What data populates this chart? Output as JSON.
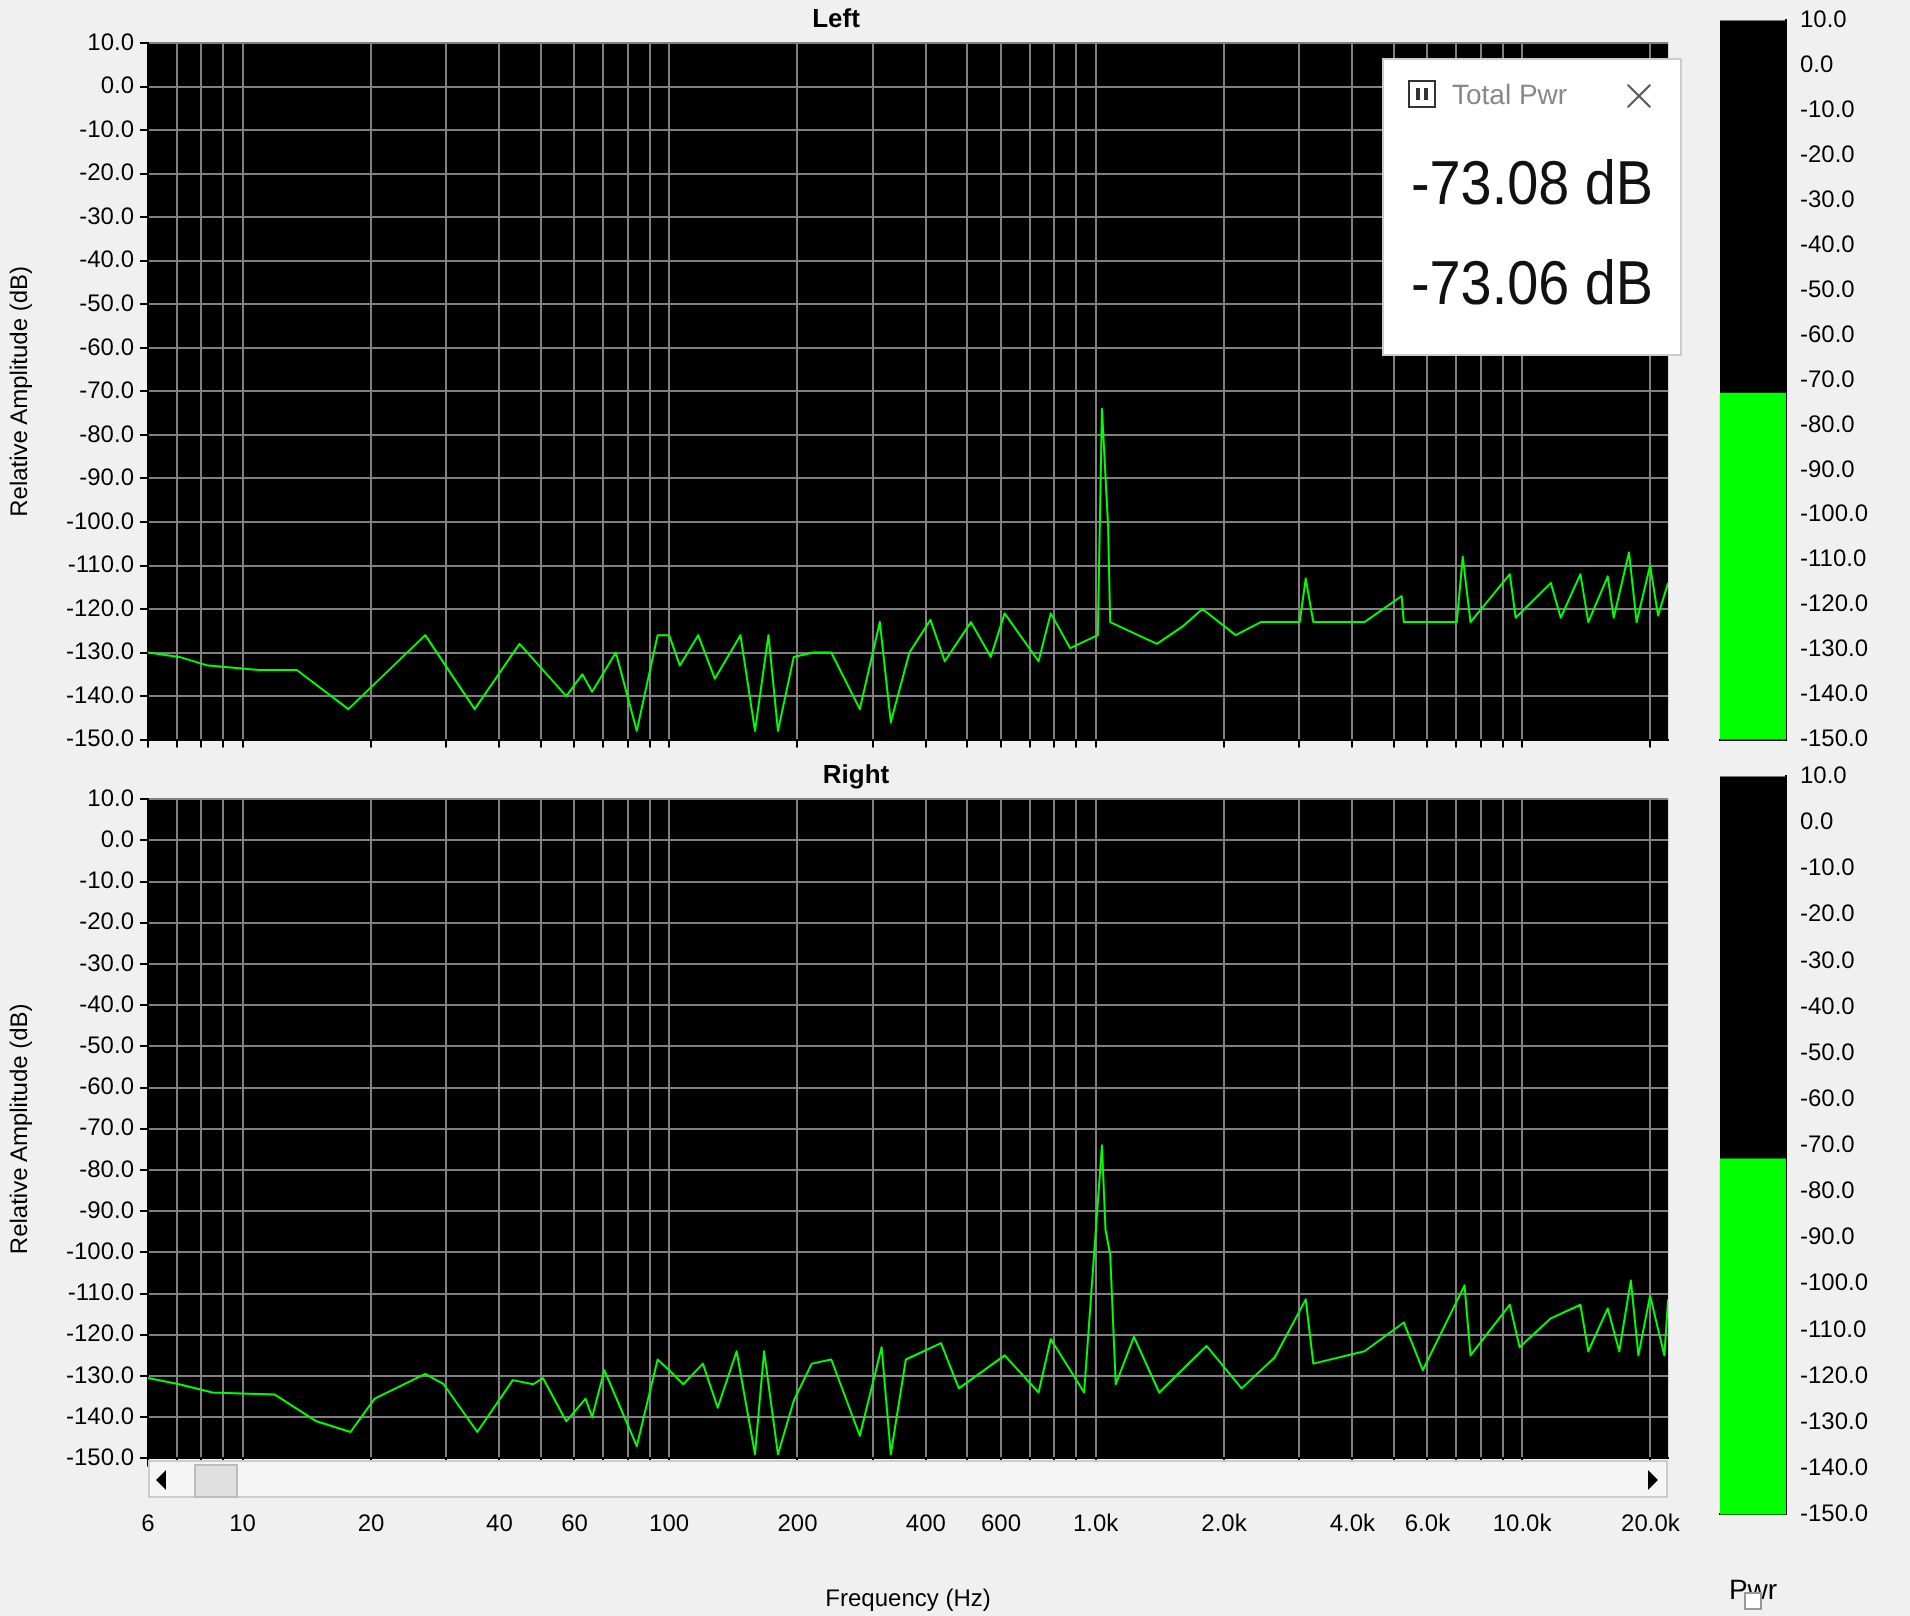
{
  "chart_data": [
    {
      "type": "line",
      "title": "Left",
      "ylabel": "Relative Amplitude (dB)",
      "log": "x",
      "grid": true,
      "tick_labels": "y",
      "xlim": [
        6,
        22000
      ],
      "xticks": [
        {
          "value": 6,
          "label": null
        },
        {
          "value": 7,
          "label": null
        },
        {
          "value": 8,
          "label": null
        },
        {
          "value": 9,
          "label": null
        },
        {
          "value": 10,
          "label": null
        },
        {
          "value": 20,
          "label": null
        },
        {
          "value": 30,
          "label": null
        },
        {
          "value": 40,
          "label": null
        },
        {
          "value": 50,
          "label": null
        },
        {
          "value": 60,
          "label": null
        },
        {
          "value": 70,
          "label": null
        },
        {
          "value": 80,
          "label": null
        },
        {
          "value": 90,
          "label": null
        },
        {
          "value": 100,
          "label": null
        },
        {
          "value": 200,
          "label": null
        },
        {
          "value": 300,
          "label": null
        },
        {
          "value": 400,
          "label": null
        },
        {
          "value": 500,
          "label": null
        },
        {
          "value": 600,
          "label": null
        },
        {
          "value": 700,
          "label": null
        },
        {
          "value": 800,
          "label": null
        },
        {
          "value": 900,
          "label": null
        },
        {
          "value": 1000,
          "label": null
        },
        {
          "value": 2000,
          "label": null
        },
        {
          "value": 3000,
          "label": null
        },
        {
          "value": 4000,
          "label": null
        },
        {
          "value": 5000,
          "label": null
        },
        {
          "value": 6000,
          "label": null
        },
        {
          "value": 7000,
          "label": null
        },
        {
          "value": 8000,
          "label": null
        },
        {
          "value": 9000,
          "label": null
        },
        {
          "value": 10000,
          "label": null
        },
        {
          "value": 20000,
          "label": null
        }
      ],
      "ylim": [
        -150,
        10
      ],
      "yticks": [
        {
          "value": 10,
          "label": "10.0"
        },
        {
          "value": 0,
          "label": "0.0"
        },
        {
          "value": -10,
          "label": "-10.0"
        },
        {
          "value": -20,
          "label": "-20.0"
        },
        {
          "value": -30,
          "label": "-30.0"
        },
        {
          "value": -40,
          "label": "-40.0"
        },
        {
          "value": -50,
          "label": "-50.0"
        },
        {
          "value": -60,
          "label": "-60.0"
        },
        {
          "value": -70,
          "label": "-70.0"
        },
        {
          "value": -80,
          "label": "-80.0"
        },
        {
          "value": -90,
          "label": "-90.0"
        },
        {
          "value": -100,
          "label": "-100.0"
        },
        {
          "value": -110,
          "label": "-110.0"
        },
        {
          "value": -120,
          "label": "-120.0"
        },
        {
          "value": -130,
          "label": "-130.0"
        },
        {
          "value": -140,
          "label": "-140.0"
        },
        {
          "value": -150,
          "label": "-150.0"
        }
      ],
      "series": [
        {
          "color": "#00ff00",
          "x": [
            6,
            7.1,
            8.3,
            10.9,
            13.4,
            17.7,
            26.8,
            35,
            44.6,
            57.4,
            62.6,
            66,
            75,
            84,
            94,
            100,
            106,
            117,
            128,
            147,
            159,
            171,
            180,
            196,
            218,
            240,
            280,
            312,
            331,
            366,
            410,
            443,
            510,
            568,
            612,
            735,
            785,
            872,
            1012,
            1035,
            1070,
            1082,
            1393,
            1600,
            1780,
            2130,
            2440,
            3010,
            3110,
            3240,
            4270,
            5220,
            5280,
            7030,
            7260,
            7570,
            9360,
            9660,
            11680,
            12320,
            13700,
            14300,
            15880,
            16400,
            17810,
            18560,
            19960,
            20840,
            22000
          ],
          "values": [
            -130,
            -131,
            -133,
            -134,
            -134,
            -143,
            -126,
            -143,
            -128,
            -140,
            -135,
            -139,
            -130,
            -148,
            -126,
            -126,
            -133,
            -126,
            -136,
            -126,
            -148,
            -126,
            -148,
            -131,
            -130,
            -130,
            -143,
            -123,
            -146,
            -130,
            -122.5,
            -132,
            -123,
            -131,
            -121,
            -132,
            -121,
            -129,
            -126,
            -74,
            -101,
            -123,
            -128,
            -124,
            -120,
            -126,
            -123,
            -123,
            -113,
            -123,
            -123,
            -117,
            -123,
            -123,
            -108,
            -123,
            -112,
            -122,
            -114,
            -122,
            -112,
            -123,
            -112.5,
            -122,
            -107,
            -123,
            -110,
            -121.5,
            -114
          ]
        }
      ]
    },
    {
      "type": "bar",
      "categories": [
        null
      ],
      "base": [
        -150
      ],
      "values": [
        77
      ],
      "color": "#00ff00",
      "tick_labels": "y",
      "ylim": [
        -150,
        10
      ],
      "yticks": [
        {
          "value": 10,
          "label": "10.0"
        },
        {
          "value": 0,
          "label": "0.0"
        },
        {
          "value": -10,
          "label": "-10.0"
        },
        {
          "value": -20,
          "label": "-20.0"
        },
        {
          "value": -30,
          "label": "-30.0"
        },
        {
          "value": -40,
          "label": "-40.0"
        },
        {
          "value": -50,
          "label": "-50.0"
        },
        {
          "value": -60,
          "label": "-60.0"
        },
        {
          "value": -70,
          "label": "-70.0"
        },
        {
          "value": -80,
          "label": "-80.0"
        },
        {
          "value": -90,
          "label": "-90.0"
        },
        {
          "value": -100,
          "label": "-100.0"
        },
        {
          "value": -110,
          "label": "-110.0"
        },
        {
          "value": -120,
          "label": "-120.0"
        },
        {
          "value": -130,
          "label": "-130.0"
        },
        {
          "value": -140,
          "label": "-140.0"
        },
        {
          "value": -150,
          "label": "-150.0"
        }
      ]
    },
    {
      "type": "line",
      "title": "Right",
      "xlabel": "Frequency (Hz)",
      "ylabel": "Relative Amplitude (dB)",
      "log": "x",
      "grid": true,
      "xlim": [
        6,
        22000
      ],
      "xticks": [
        {
          "value": 6,
          "label": "6"
        },
        {
          "value": 7,
          "label": null
        },
        {
          "value": 8,
          "label": null
        },
        {
          "value": 9,
          "label": null
        },
        {
          "value": 10,
          "label": "10"
        },
        {
          "value": 20,
          "label": "20"
        },
        {
          "value": 30,
          "label": null
        },
        {
          "value": 40,
          "label": "40"
        },
        {
          "value": 50,
          "label": null
        },
        {
          "value": 60,
          "label": "60"
        },
        {
          "value": 70,
          "label": null
        },
        {
          "value": 80,
          "label": null
        },
        {
          "value": 90,
          "label": null
        },
        {
          "value": 100,
          "label": "100"
        },
        {
          "value": 200,
          "label": "200"
        },
        {
          "value": 300,
          "label": null
        },
        {
          "value": 400,
          "label": "400"
        },
        {
          "value": 500,
          "label": null
        },
        {
          "value": 600,
          "label": "600"
        },
        {
          "value": 700,
          "label": null
        },
        {
          "value": 800,
          "label": null
        },
        {
          "value": 900,
          "label": null
        },
        {
          "value": 1000,
          "label": "1.0k"
        },
        {
          "value": 2000,
          "label": "2.0k"
        },
        {
          "value": 3000,
          "label": null
        },
        {
          "value": 4000,
          "label": "4.0k"
        },
        {
          "value": 5000,
          "label": null
        },
        {
          "value": 6000,
          "label": "6.0k"
        },
        {
          "value": 7000,
          "label": null
        },
        {
          "value": 8000,
          "label": null
        },
        {
          "value": 9000,
          "label": null
        },
        {
          "value": 10000,
          "label": "10.0k"
        },
        {
          "value": 20000,
          "label": "20.0k"
        }
      ],
      "ylim": [
        -150,
        10
      ],
      "yticks": [
        {
          "value": 10,
          "label": "10.0"
        },
        {
          "value": 0,
          "label": "0.0"
        },
        {
          "value": -10,
          "label": "-10.0"
        },
        {
          "value": -20,
          "label": "-20.0"
        },
        {
          "value": -30,
          "label": "-30.0"
        },
        {
          "value": -40,
          "label": "-40.0"
        },
        {
          "value": -50,
          "label": "-50.0"
        },
        {
          "value": -60,
          "label": "-60.0"
        },
        {
          "value": -70,
          "label": "-70.0"
        },
        {
          "value": -80,
          "label": "-80.0"
        },
        {
          "value": -90,
          "label": "-90.0"
        },
        {
          "value": -100,
          "label": "-100.0"
        },
        {
          "value": -110,
          "label": "-110.0"
        },
        {
          "value": -120,
          "label": "-120.0"
        },
        {
          "value": -130,
          "label": "-130.0"
        },
        {
          "value": -140,
          "label": "-140.0"
        },
        {
          "value": -150,
          "label": "-150.0"
        }
      ],
      "series": [
        {
          "color": "#00ff00",
          "x": [
            6,
            7.1,
            8.5,
            11.9,
            14.9,
            17.9,
            20.4,
            26.8,
            29.6,
            35.5,
            43,
            48,
            50.6,
            57.4,
            63.7,
            66,
            70.5,
            84,
            94,
            100,
            108,
            120,
            130,
            144,
            159,
            167,
            180,
            196,
            216,
            240,
            280,
            315,
            331,
            359,
            434,
            478,
            612,
            735,
            785,
            940,
            1035,
            1055,
            1082,
            1115,
            1230,
            1410,
            1820,
            2200,
            2630,
            3110,
            3240,
            4270,
            5280,
            5850,
            7330,
            7570,
            9360,
            9870,
            11680,
            13700,
            14300,
            15880,
            16900,
            17990,
            18740,
            19960,
            21560,
            22000
          ],
          "values": [
            -130.5,
            -132,
            -134,
            -134.5,
            -141,
            -143.6,
            -135.5,
            -129.5,
            -132,
            -143.6,
            -131,
            -132,
            -130.5,
            -141,
            -135.5,
            -140,
            -128.6,
            -147,
            -126,
            -128.6,
            -132,
            -127,
            -137.7,
            -124,
            -149,
            -124,
            -149,
            -136,
            -127,
            -126,
            -144.5,
            -123,
            -149,
            -126,
            -122,
            -133,
            -125,
            -134,
            -121,
            -134,
            -74,
            -94.5,
            -100.5,
            -132,
            -120.5,
            -134,
            -122.7,
            -133,
            -125.5,
            -111.4,
            -127,
            -124,
            -117,
            -128.6,
            -108,
            -125,
            -112.7,
            -123,
            -116,
            -112.7,
            -124,
            -113.6,
            -124,
            -106.8,
            -125,
            -110.5,
            -125,
            -111.4
          ]
        }
      ]
    },
    {
      "type": "bar",
      "categories": [
        null
      ],
      "base": [
        -150
      ],
      "values": [
        77
      ],
      "color": "#00ff00",
      "tick_labels": "y",
      "xlabel": "Pwr",
      "ylim": [
        -150,
        10
      ],
      "yticks": [
        {
          "value": 10,
          "label": "10.0"
        },
        {
          "value": 0,
          "label": "0.0"
        },
        {
          "value": -10,
          "label": "-10.0"
        },
        {
          "value": -20,
          "label": "-20.0"
        },
        {
          "value": -30,
          "label": "-30.0"
        },
        {
          "value": -40,
          "label": "-40.0"
        },
        {
          "value": -50,
          "label": "-50.0"
        },
        {
          "value": -60,
          "label": "-60.0"
        },
        {
          "value": -70,
          "label": "-70.0"
        },
        {
          "value": -80,
          "label": "-80.0"
        },
        {
          "value": -90,
          "label": "-90.0"
        },
        {
          "value": -100,
          "label": "-100.0"
        },
        {
          "value": -110,
          "label": "-110.0"
        },
        {
          "value": -120,
          "label": "-120.0"
        },
        {
          "value": -130,
          "label": "-130.0"
        },
        {
          "value": -140,
          "label": "-140.0"
        },
        {
          "value": -150,
          "label": "-150.0"
        }
      ]
    },
    {
      "type": "other",
      "title": "Total Pwr",
      "annotations": [
        "-73.08 dB",
        "-73.06 dB"
      ]
    }
  ]
}
